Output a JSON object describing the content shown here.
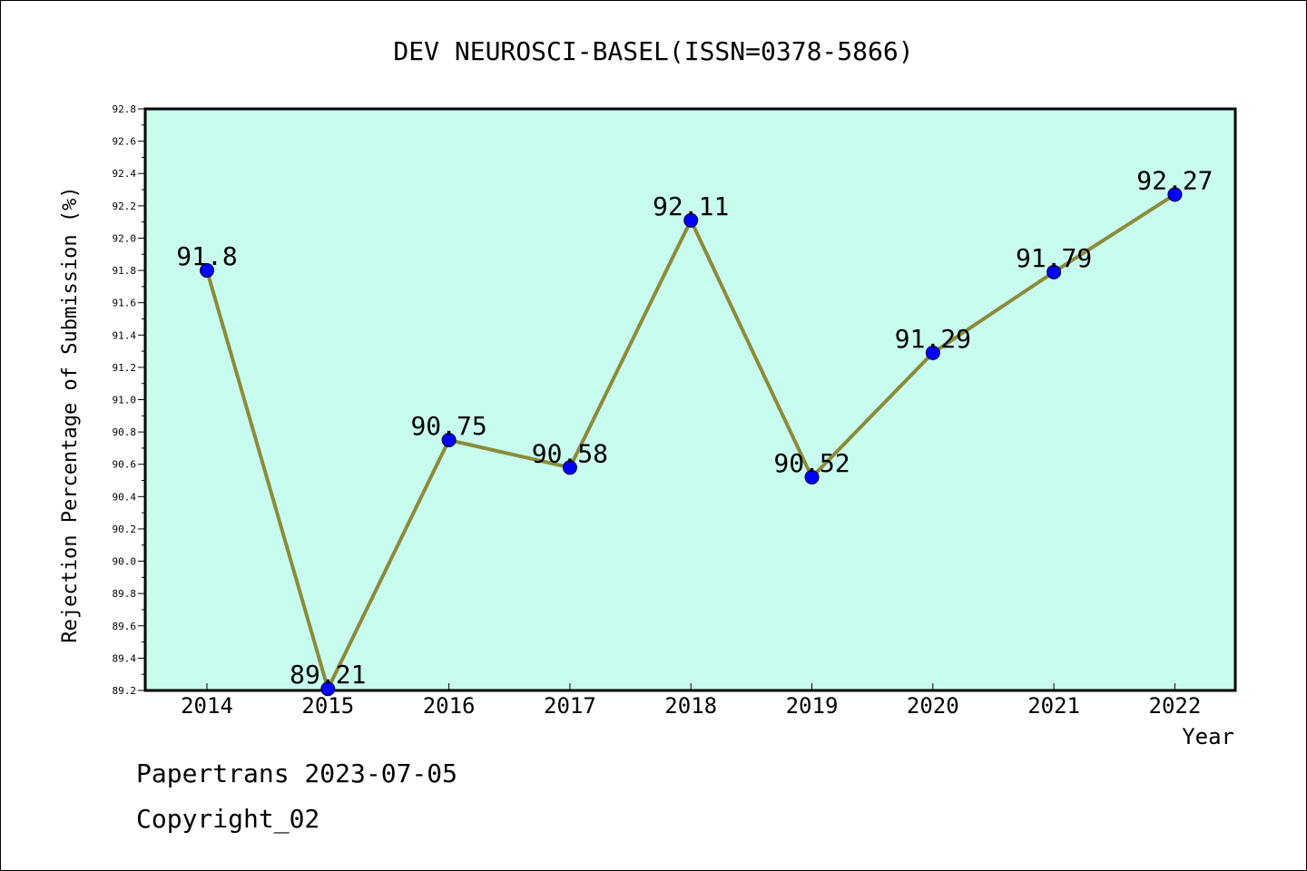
{
  "chart_data": {
    "type": "line",
    "title": "DEV NEUROSCI-BASEL(ISSN=0378-5866)",
    "xlabel": "Year",
    "ylabel": "Rejection Percentage of Submission (%)",
    "categories": [
      "2014",
      "2015",
      "2016",
      "2017",
      "2018",
      "2019",
      "2020",
      "2021",
      "2022"
    ],
    "values": [
      91.8,
      89.21,
      90.75,
      90.58,
      92.11,
      90.52,
      91.29,
      91.79,
      92.27
    ],
    "data_labels": [
      "91.8",
      "89.21",
      "90.75",
      "90.58",
      "92.11",
      "90.52",
      "91.29",
      "91.79",
      "92.27"
    ],
    "ylim": [
      89.2,
      92.8
    ],
    "yticks": [
      "89.2",
      "89.4",
      "89.6",
      "89.8",
      "90.0",
      "90.2",
      "90.4",
      "90.6",
      "90.8",
      "91.0",
      "91.2",
      "91.4",
      "91.6",
      "91.8",
      "92.0",
      "92.2",
      "92.4",
      "92.6",
      "92.8"
    ],
    "grid": false,
    "colors": {
      "plot_background": "#c8fcee",
      "line": "#8b8b3a",
      "marker": "#0000ff"
    }
  },
  "footer": {
    "line1": "Papertrans 2023-07-05",
    "line2": "Copyright_02"
  }
}
